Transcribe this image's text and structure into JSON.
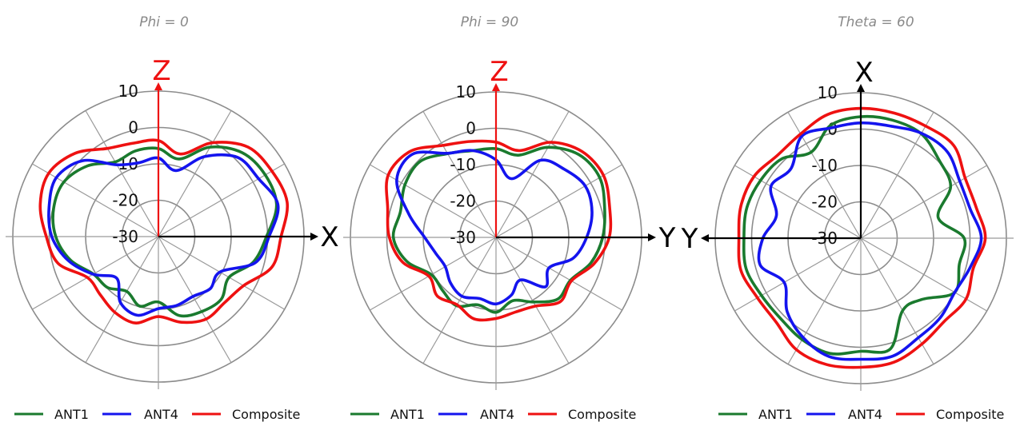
{
  "chart_data": [
    {
      "type": "polar-line",
      "title": "Phi = 0",
      "rlim": [
        -30,
        10
      ],
      "rticks": [
        "10",
        "0",
        "-10",
        "-20",
        "-30"
      ],
      "axes": {
        "up": {
          "label": "Z",
          "color": "#ee1111"
        },
        "side": {
          "label": "X",
          "direction": "right",
          "color": "#000000"
        }
      },
      "angles_deg": [
        0,
        15,
        30,
        45,
        60,
        75,
        90,
        105,
        120,
        135,
        150,
        165,
        180,
        195,
        210,
        225,
        240,
        255,
        270,
        285,
        300,
        315,
        330,
        345
      ],
      "series": [
        {
          "name": "ANT1",
          "color": "#1a7a2e",
          "values": [
            -5.8,
            -7.9,
            -1.6,
            2.6,
            3.9,
            3.6,
            -0.3,
            -3,
            -7.6,
            -5.6,
            -6.2,
            -7.5,
            -12,
            -10.2,
            -12.6,
            -10.2,
            -9.4,
            -5,
            -1.8,
            -0.2,
            0,
            -2.5,
            -6.3,
            -5.6
          ]
        },
        {
          "name": "ANT4",
          "color": "#1414ee",
          "values": [
            -8.4,
            -11.2,
            -4.6,
            0.8,
            1.8,
            4,
            0.4,
            -2.4,
            -10.5,
            -9.8,
            -11,
            -10.4,
            -10.2,
            -7.6,
            -9.1,
            -13.8,
            -9.3,
            -4.4,
            -0.7,
            1.1,
            2.4,
            -0.5,
            -7.2,
            -9
          ]
        },
        {
          "name": "Composite",
          "color": "#ee1111",
          "values": [
            -3.6,
            -6.5,
            -0.2,
            4.8,
            6,
            6.6,
            3.7,
            2.3,
            -3,
            -4.3,
            -3.8,
            -5.6,
            -8,
            -5.4,
            -6,
            -7.4,
            -7.5,
            -1.5,
            0.8,
            3.6,
            4.8,
            2.4,
            -2,
            -3.4
          ]
        }
      ],
      "legend": "bottom"
    },
    {
      "type": "polar-line",
      "title": "Phi = 90",
      "rlim": [
        -30,
        10
      ],
      "rticks": [
        "10",
        "0",
        "-10",
        "-20",
        "-30"
      ],
      "axes": {
        "up": {
          "label": "Z",
          "color": "#ee1111"
        },
        "side": {
          "label": "Y",
          "direction": "right",
          "color": "#000000"
        }
      },
      "angles_deg": [
        0,
        15,
        30,
        45,
        60,
        75,
        90,
        105,
        120,
        135,
        150,
        165,
        180,
        195,
        210,
        225,
        240,
        255,
        270,
        285,
        300,
        315,
        330,
        345
      ],
      "series": [
        {
          "name": "ANT1",
          "color": "#1a7a2e",
          "values": [
            -5.6,
            -6.6,
            -1.4,
            2.2,
            2.9,
            0.9,
            -0.7,
            -3,
            -6.4,
            -6,
            -9.5,
            -12,
            -9.4,
            -10.8,
            -8.3,
            -9.3,
            -9.5,
            -4.6,
            -1.8,
            -2.8,
            -1.1,
            -0.5,
            -3.4,
            -5.3
          ]
        },
        {
          "name": "ANT4",
          "color": "#1414ee",
          "values": [
            -8.7,
            -13.3,
            -5.5,
            -3.5,
            -1.7,
            -2.7,
            -5.1,
            -8,
            -13.2,
            -10.8,
            -16.5,
            -13.6,
            -11.7,
            -12.6,
            -11.3,
            -12.3,
            -13.9,
            -12.9,
            -10.4,
            -5.2,
            1.5,
            2.4,
            -3.3,
            -5.3
          ]
        },
        {
          "name": "Composite",
          "color": "#ee1111",
          "values": [
            -3.8,
            -5.3,
            0.2,
            3.4,
            4.1,
            2.3,
            1.1,
            -2.1,
            -6.1,
            -5,
            -8.2,
            -8.8,
            -7.7,
            -6.8,
            -8.6,
            -7.2,
            -8.7,
            -3.5,
            -0.7,
            0.8,
            4.2,
            3.4,
            -0.8,
            -2.7
          ]
        }
      ],
      "legend": "bottom"
    },
    {
      "type": "polar-line",
      "title": "Theta = 60",
      "rlim": [
        -30,
        10
      ],
      "rticks": [
        "10",
        "0",
        "-10",
        "-20",
        "-30"
      ],
      "axes": {
        "up": {
          "label": "X",
          "color": "#000000"
        },
        "side": {
          "label": "Y",
          "direction": "left",
          "color": "#000000"
        }
      },
      "angles_deg": [
        0,
        15,
        30,
        45,
        60,
        75,
        90,
        105,
        120,
        135,
        150,
        165,
        180,
        195,
        210,
        225,
        240,
        255,
        270,
        285,
        300,
        315,
        330,
        345
      ],
      "series": [
        {
          "name": "ANT1",
          "color": "#1a7a2e",
          "values": [
            3.4,
            3.6,
            3.2,
            0.4,
            -1.5,
            -8,
            -1.6,
            -2,
            -0.2,
            -6.2,
            -7,
            1.5,
            1.1,
            2.8,
            2.2,
            1.2,
            1.5,
            2.6,
            2.1,
            2.4,
            1.8,
            0.8,
            -2.7,
            2.1
          ]
        },
        {
          "name": "ANT4",
          "color": "#1414ee",
          "values": [
            1.7,
            1.9,
            3.3,
            3.6,
            1.4,
            1.1,
            3.1,
            1.1,
            -0.2,
            0.9,
            1.6,
            3.6,
            3.3,
            3.7,
            1.6,
            -1.4,
            -5.7,
            -1.4,
            -3.1,
            -6,
            -1.5,
            -2.9,
            2.4,
            1.4
          ]
        },
        {
          "name": "Composite",
          "color": "#ee1111",
          "values": [
            5.7,
            5.6,
            5.6,
            6.1,
            3.1,
            2.8,
            4.2,
            2,
            3.4,
            2.4,
            3.6,
            5.3,
            5.5,
            6,
            5.4,
            2.8,
            2.8,
            4.1,
            3.5,
            4.1,
            3.9,
            2.3,
            3.1,
            5.2
          ]
        }
      ],
      "legend": "bottom"
    }
  ]
}
